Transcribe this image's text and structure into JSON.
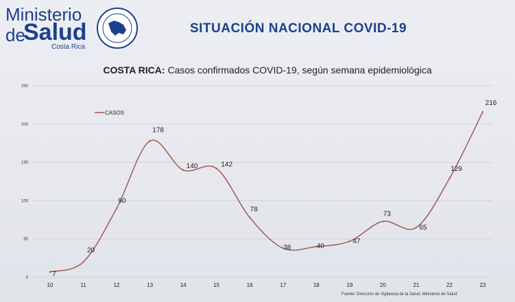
{
  "header": {
    "logo_line1": "Ministerio",
    "logo_de": "de",
    "logo_salud": "Salud",
    "logo_country": "Costa Rica",
    "seal_label": "costa-rica-seal",
    "main_title": "SITUACIÓN NACIONAL COVID-19"
  },
  "chart_title_bold": "COSTA RICA:",
  "chart_title_rest": " Casos confirmados COVID-19, según semana epidemiológica",
  "footnote": "Fuente: Dirección de Vigilancia de la Salud, Ministerio de Salud",
  "colors": {
    "line": "#a05a4c",
    "grid": "#cfd2d8",
    "brand": "#1c3f8f"
  },
  "chart_data": {
    "type": "line",
    "title": "COSTA RICA: Casos confirmados COVID-19, según semana epidemiológica",
    "xlabel": "",
    "ylabel": "",
    "x": [
      10,
      11,
      12,
      13,
      14,
      15,
      16,
      17,
      18,
      19,
      20,
      21,
      22,
      23
    ],
    "ylim": [
      0,
      250
    ],
    "yticks": [
      0,
      50,
      100,
      150,
      200,
      250
    ],
    "grid": true,
    "legend": "top-left",
    "series": [
      {
        "name": "CASOS",
        "values": [
          7,
          20,
          90,
          178,
          140,
          142,
          78,
          38,
          40,
          47,
          73,
          65,
          129,
          216
        ]
      }
    ]
  }
}
